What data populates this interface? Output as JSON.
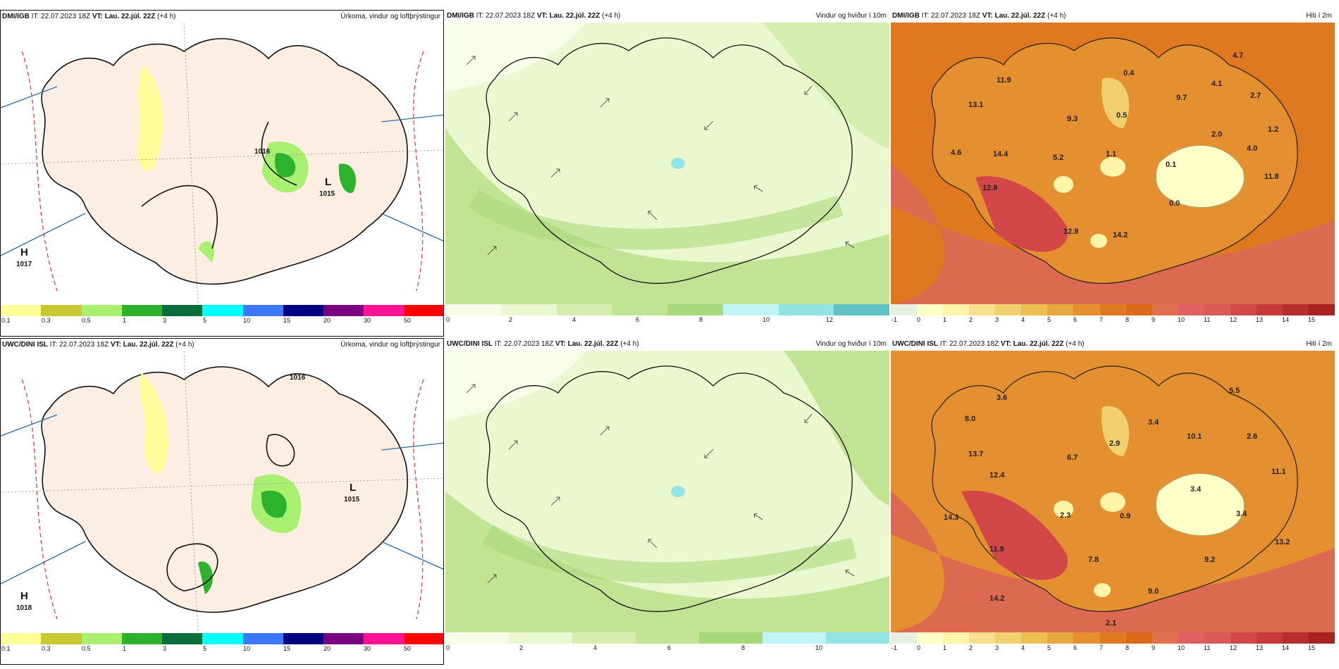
{
  "panels": [
    {
      "model": "DMI/IGB",
      "it": "IT: 22.07.2023 18Z",
      "vt": "VT: Lau. 22.júl. 22Z",
      "lead": "(+4 h)",
      "title": "Úrkoma, vindur og loftþrýstingur",
      "labels": [
        "H",
        "1017",
        "L",
        "1015",
        "1016"
      ],
      "ticks": [
        "0.1",
        "0.3",
        "0.5",
        "1",
        "3",
        "5",
        "10",
        "15",
        "20",
        "30",
        "50"
      ],
      "colors": [
        "#ffff99",
        "#c8c832",
        "#aaf070",
        "#2db22d",
        "#0a6e3c",
        "#00ffff",
        "#3c78ff",
        "#000080",
        "#7a0080",
        "#ff1493",
        "#ff0000"
      ]
    },
    {
      "model": "DMI/IGB",
      "it": "IT: 22.07.2023 18Z",
      "vt": "VT: Lau. 22.júl. 22Z",
      "lead": "(+4 h)",
      "title": "Vindur og hviður í 10m",
      "ticks": [
        "0",
        "2",
        "4",
        "6",
        "8",
        "10",
        "12"
      ],
      "colors": [
        "#f8fde8",
        "#eaf7cf",
        "#d5eeb0",
        "#c0e494",
        "#a8d87a",
        "#bff5f5",
        "#90e4e4",
        "#60c2c2"
      ]
    },
    {
      "model": "DMI/IGB",
      "it": "IT: 22.07.2023 18Z",
      "vt": "VT: Lau. 22.júl. 22Z",
      "lead": "(+4 h)",
      "title": "Hiti í 2m",
      "values": [
        "11.9",
        "13.1",
        "4.6",
        "14.4",
        "12.8",
        "9.3",
        "5.2",
        "1.1",
        "0.4",
        "0.5",
        "9.7",
        "4.1",
        "4.7",
        "2.7",
        "2.0",
        "1.2",
        "4.0",
        "0.1",
        "11.8",
        "0.0",
        "12.9",
        "14.2"
      ],
      "ticks": [
        "-1",
        "0",
        "1",
        "2",
        "3",
        "4",
        "5",
        "6",
        "7",
        "8",
        "9",
        "10",
        "11",
        "12",
        "13",
        "14",
        "15"
      ],
      "colors": [
        "#e8f0e0",
        "#ffffc8",
        "#fff4a8",
        "#f8e090",
        "#f2d070",
        "#ecc050",
        "#e8a840",
        "#e49030",
        "#e07820",
        "#dd6a1a",
        "#e07050",
        "#e06060",
        "#da5a58",
        "#d24848",
        "#c83a3a",
        "#b82d2d",
        "#a82222"
      ]
    },
    {
      "model": "UWC/DINI ISL",
      "it": "IT: 22.07.2023 18Z",
      "vt": "VT: Lau. 22.júl. 22Z",
      "lead": "(+4 h)",
      "title": "Úrkoma, vindur og loftþrýstingur",
      "labels": [
        "H",
        "1018",
        "L",
        "1015",
        "1016"
      ],
      "ticks": [
        "0.1",
        "0.3",
        "0.5",
        "1",
        "3",
        "5",
        "10",
        "15",
        "20",
        "30",
        "50"
      ],
      "colors": [
        "#ffff99",
        "#c8c832",
        "#aaf070",
        "#2db22d",
        "#0a6e3c",
        "#00ffff",
        "#3c78ff",
        "#000080",
        "#7a0080",
        "#ff1493",
        "#ff0000"
      ]
    },
    {
      "model": "UWC/DINI ISL",
      "it": "IT: 22.07.2023 18Z",
      "vt": "VT: Lau. 22.júl. 22Z",
      "lead": "(+4 h)",
      "title": "Vindur og hviður í 10m",
      "ticks": [
        "0",
        "2",
        "4",
        "6",
        "8",
        "10"
      ],
      "colors": [
        "#f8fde8",
        "#eaf7cf",
        "#d5eeb0",
        "#c0e494",
        "#a8d87a",
        "#bff5f5",
        "#90e4e4"
      ]
    },
    {
      "model": "UWC/DINI ISL",
      "it": "IT: 22.07.2023 18Z",
      "vt": "VT: Lau. 22.júl. 22Z",
      "lead": "(+4 h)",
      "title": "Hiti í 2m",
      "values": [
        "3.6",
        "8.0",
        "13.7",
        "12.4",
        "6.7",
        "2.9",
        "3.4",
        "10.1",
        "5.5",
        "2.6",
        "11.1",
        "3.4",
        "3.4",
        "14.3",
        "11.9",
        "2.3",
        "0.9",
        "7.8",
        "13.2",
        "9.2",
        "14.2",
        "9.0",
        "2.1"
      ],
      "ticks": [
        "-1",
        "0",
        "1",
        "2",
        "3",
        "4",
        "5",
        "6",
        "7",
        "8",
        "9",
        "10",
        "11",
        "12",
        "13",
        "14",
        "15"
      ],
      "colors": [
        "#e8f0e0",
        "#ffffc8",
        "#fff4a8",
        "#f8e090",
        "#f2d070",
        "#ecc050",
        "#e8a840",
        "#e49030",
        "#e07820",
        "#dd6a1a",
        "#e07050",
        "#e06060",
        "#da5a58",
        "#d24848",
        "#c83a3a",
        "#b82d2d",
        "#a82222"
      ]
    }
  ]
}
